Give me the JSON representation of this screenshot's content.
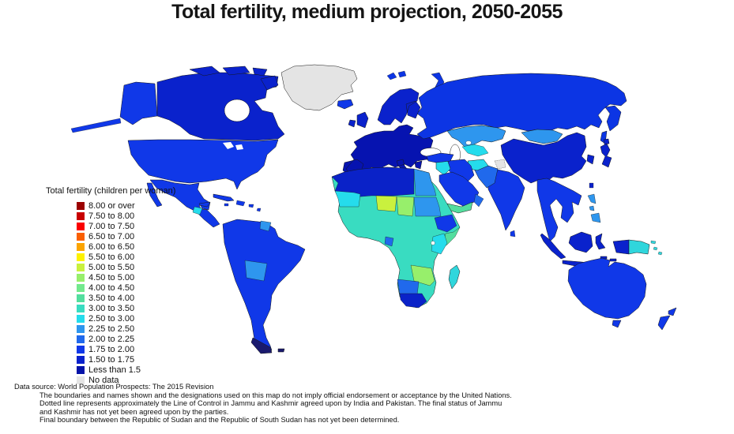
{
  "title": "Total fertility, medium projection, 2050-2055",
  "legend": {
    "header": "Total fertility (children per woman)",
    "items": [
      {
        "label": "8.00 or over",
        "color": "#9b0000"
      },
      {
        "label": "7.50 to 8.00",
        "color": "#c80000"
      },
      {
        "label": "7.00 to 7.50",
        "color": "#fa0000"
      },
      {
        "label": "6.50 to 7.00",
        "color": "#fa5f00"
      },
      {
        "label": "6.00 to 6.50",
        "color": "#fba400"
      },
      {
        "label": "5.50 to 6.00",
        "color": "#fdf200"
      },
      {
        "label": "5.00 to 5.50",
        "color": "#c9f13e"
      },
      {
        "label": "4.50 to 5.00",
        "color": "#97ef6b"
      },
      {
        "label": "4.00 to 4.50",
        "color": "#73e98d"
      },
      {
        "label": "3.50 to 4.00",
        "color": "#53de9e"
      },
      {
        "label": "3.00 to 3.50",
        "color": "#39dcc1"
      },
      {
        "label": "2.50 to 3.00",
        "color": "#25dcec"
      },
      {
        "label": "2.25 to 2.50",
        "color": "#2e96ee"
      },
      {
        "label": "2.00 to 2.25",
        "color": "#2069ec"
      },
      {
        "label": "1.75 to 2.00",
        "color": "#1038e8"
      },
      {
        "label": "1.50 to 1.75",
        "color": "#0a22cc"
      },
      {
        "label": "Less than 1.5",
        "color": "#0513a8"
      },
      {
        "label": "No data",
        "color": "#e4e4e4"
      }
    ]
  },
  "map": {
    "regions": {
      "greenland": "#e4e4e4",
      "canada": "#0a22cc",
      "arctic_islands": "#0a22cc",
      "alaska": "#1038e8",
      "usa": "#1038e8",
      "mexico": "#1038e8",
      "guatemala": "#25dcec",
      "cuba": "#1038e8",
      "caribbean": "#1038e8",
      "south_america": "#1038e8",
      "tierra_del_fuego": "#1a1a6e",
      "bolivia": "#2e96ee",
      "guyana": "#2e96ee",
      "iceland": "#1038e8",
      "uk": "#0a22cc",
      "ireland": "#0a22cc",
      "europe": "#0613b0",
      "scandinavia": "#0a22cc",
      "svalbard": "#0c35e4",
      "novaya_zemlya": "#0c35e4",
      "russia": "#0c35e4",
      "kazakhstan": "#2e96ee",
      "central_asia": "#25dcec",
      "mongolia": "#2e96ee",
      "china": "#0a22cc",
      "korea": "#0a22cc",
      "japan": "#0a22cc",
      "taiwan": "#0a22cc",
      "india": "#1038e8",
      "sri_lanka": "#1038e8",
      "pakistan": "#2069ec",
      "kashmir": "#e4e4e4",
      "afghanistan": "#25dcec",
      "iran": "#1038e8",
      "iraq": "#25dcec",
      "turkey": "#1038e8",
      "saudi_arabia": "#1038e8",
      "yemen": "#53de9e",
      "oman": "#2069ec",
      "se_asia": "#1038e8",
      "indonesia": "#0a22cc",
      "philippines": "#2e96ee",
      "papua_new_guinea": "#30d6dc",
      "pacific_islands": "#30d6dc",
      "australia": "#1038e8",
      "new_zealand": "#1038e8",
      "africa_base": "#39dcc1",
      "north_africa": "#0a22c8",
      "egypt": "#2e96ee",
      "west_sahara": "#25dcec",
      "niger": "#c9f13e",
      "chad": "#97ef6b",
      "sudan": "#2e96ee",
      "ethiopia": "#1038e8",
      "somalia": "#53de9e",
      "east_africa": "#25dcec",
      "gabon": "#2069ec",
      "zambia_mozambique": "#97ef6b",
      "namibia_botswana": "#2069ec",
      "south_africa": "#0a22c8",
      "madagascar": "#30d6dc"
    }
  },
  "footnotes": {
    "source": "Data source: World Population Prospects: The 2015 Revision",
    "notes": [
      "The boundaries and names shown and the designations used on this map do not imply official endorsement or acceptance by the United Nations.",
      "Dotted line represents approximately the Line of Control in Jammu and Kashmir agreed upon by India and Pakistan. The final status of Jammu",
      "and Kashmir has not yet been agreed upon by the parties.",
      "Final boundary between the Republic of Sudan and the Republic of South Sudan has not yet been determined."
    ]
  }
}
